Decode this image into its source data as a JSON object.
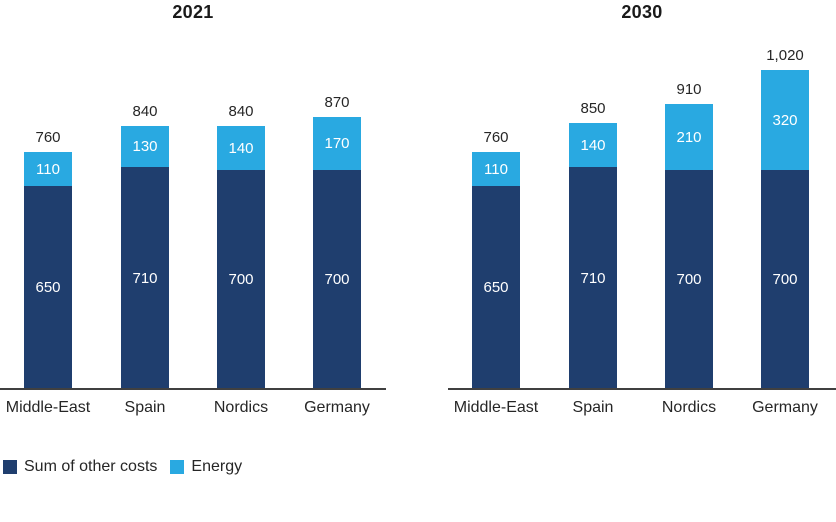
{
  "page": {
    "background": "#ffffff"
  },
  "colors": {
    "other_costs": "#1f3e6e",
    "energy": "#29a9e1",
    "axis": "#404040",
    "label_dark": "#262626",
    "label_light": "#ffffff",
    "title": "#1a1a1a"
  },
  "legend": {
    "position": "bottom-left",
    "items": [
      {
        "label": "Sum of other costs",
        "color": "#1f3e6e"
      },
      {
        "label": "Energy",
        "color": "#29a9e1"
      }
    ]
  },
  "chart_data": [
    {
      "type": "bar",
      "stacked": true,
      "title": "2021",
      "xlabel": "",
      "ylabel": "",
      "ylim": [
        0,
        1150
      ],
      "grid": false,
      "y_axis_visible": false,
      "categories": [
        "Middle-East",
        "Spain",
        "Nordics",
        "Germany"
      ],
      "series": [
        {
          "name": "Sum of other costs",
          "color": "#1f3e6e",
          "values": [
            650,
            710,
            700,
            700
          ],
          "labels": [
            "650",
            "710",
            "700",
            "700"
          ]
        },
        {
          "name": "Energy",
          "color": "#29a9e1",
          "values": [
            110,
            130,
            140,
            170
          ],
          "labels": [
            "110",
            "130",
            "140",
            "170"
          ]
        }
      ],
      "totals": [
        760,
        840,
        840,
        870
      ],
      "total_labels": [
        "760",
        "840",
        "840",
        "870"
      ]
    },
    {
      "type": "bar",
      "stacked": true,
      "title": "2030",
      "xlabel": "",
      "ylabel": "",
      "ylim": [
        0,
        1150
      ],
      "grid": false,
      "y_axis_visible": false,
      "categories": [
        "Middle-East",
        "Spain",
        "Nordics",
        "Germany"
      ],
      "series": [
        {
          "name": "Sum of other costs",
          "color": "#1f3e6e",
          "values": [
            650,
            710,
            700,
            700
          ],
          "labels": [
            "650",
            "710",
            "700",
            "700"
          ]
        },
        {
          "name": "Energy",
          "color": "#29a9e1",
          "values": [
            110,
            140,
            210,
            320
          ],
          "labels": [
            "110",
            "140",
            "210",
            "320"
          ]
        }
      ],
      "totals": [
        760,
        850,
        910,
        1020
      ],
      "total_labels": [
        "760",
        "850",
        "910",
        "1,020"
      ]
    }
  ]
}
